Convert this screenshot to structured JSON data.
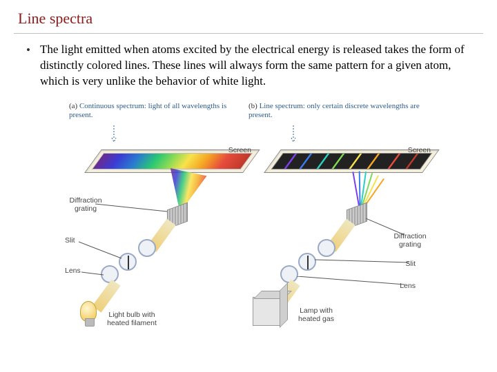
{
  "title": "Line spectra",
  "bullet": "•",
  "body": "The light emitted when atoms excited by the electrical energy is released takes the form of distinctly colored lines. These lines will always form the same pattern for a given atom, which is very unlike the behavior of white light.",
  "panel_a": {
    "letter": "(a)",
    "caption": "Continuous spectrum: light of all wavelengths is present.",
    "screen_label": "Screen",
    "grating_label": "Diffraction grating",
    "slit_label": "Slit",
    "lens_label": "Lens",
    "source_label": "Light bulb with heated filament"
  },
  "panel_b": {
    "letter": "(b)",
    "caption": "Line spectrum: only certain discrete wavelengths are present.",
    "screen_label": "Screen",
    "grating_label": "Diffraction grating",
    "slit_label": "Slit",
    "lens_label": "Lens",
    "source_label": "Lamp with heated gas"
  },
  "line_spectrum_colors": [
    "#7b3ff0",
    "#3b7bf0",
    "#2ad0c0",
    "#7ed957",
    "#f8e34b",
    "#f5a623",
    "#e74c3c",
    "#c0392b"
  ],
  "line_spectrum_positions_pct": [
    8,
    18,
    30,
    40,
    52,
    64,
    78,
    90
  ],
  "colors": {
    "title": "#8b1a1a",
    "caption": "#2b5b8e",
    "label": "#444444"
  }
}
